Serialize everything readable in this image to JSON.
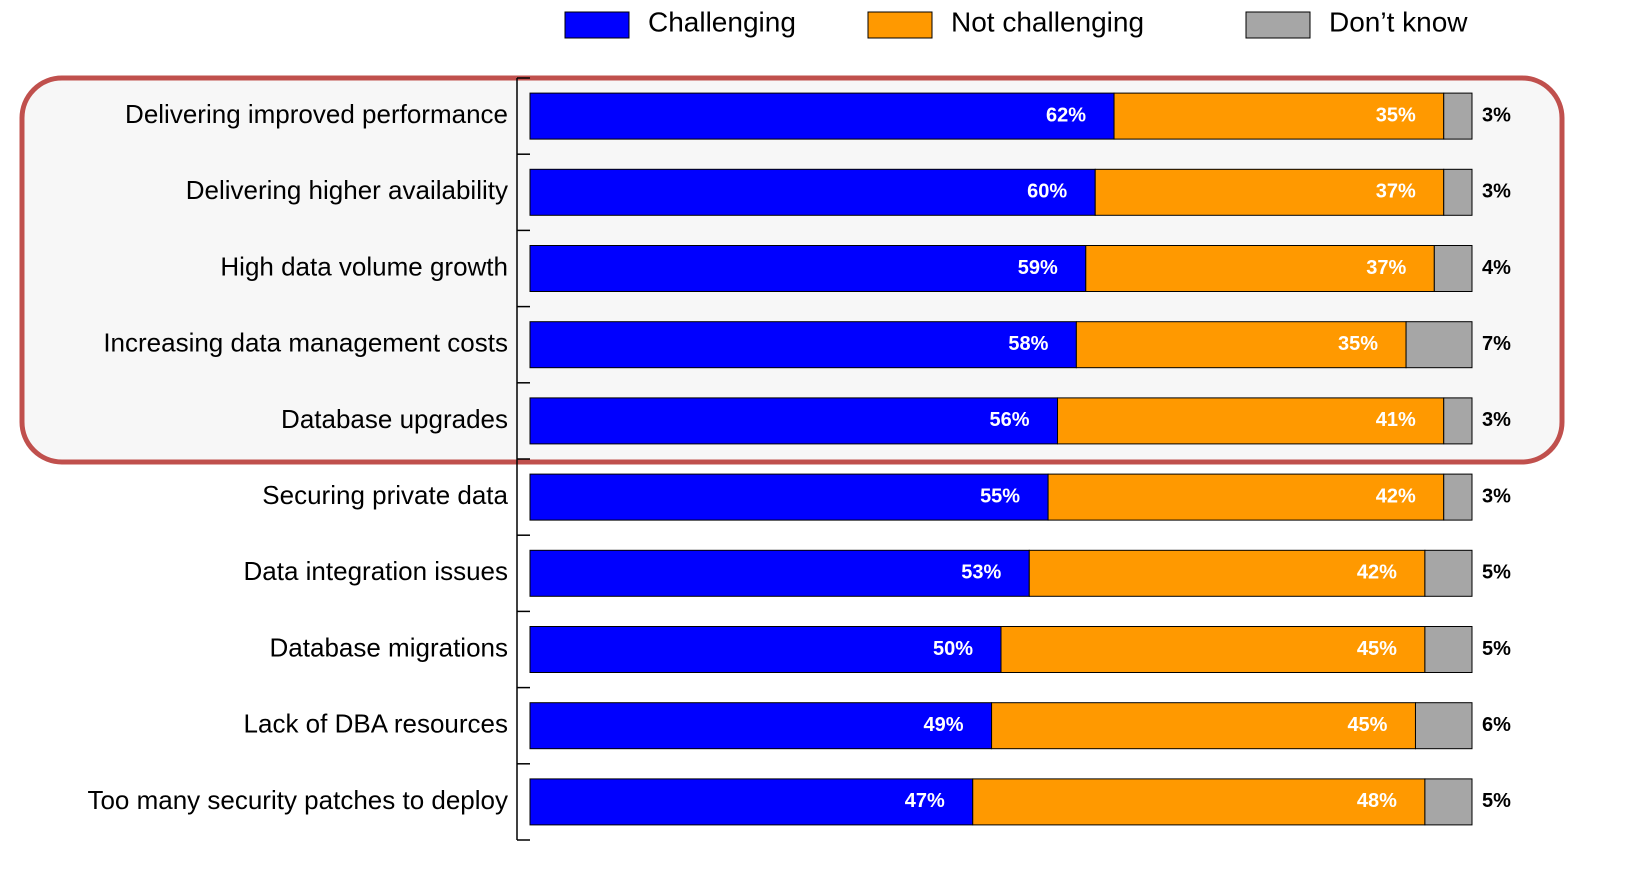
{
  "chart_data": {
    "type": "stacked_barh",
    "categories": [
      "Delivering improved performance",
      "Delivering higher availability",
      "High data volume growth",
      "Increasing data management costs",
      "Database upgrades",
      "Securing private data",
      "Data integration issues",
      "Database migrations",
      "Lack of DBA resources",
      "Too many security patches to deploy"
    ],
    "series": [
      {
        "name": "Challenging",
        "color": "#0000ff",
        "values": [
          62,
          60,
          59,
          58,
          56,
          55,
          53,
          50,
          49,
          47
        ],
        "value_labels": [
          "62%",
          "60%",
          "59%",
          "58%",
          "56%",
          "55%",
          "53%",
          "50%",
          "49%",
          "47%"
        ]
      },
      {
        "name": "Not challenging",
        "color": "#ff9900",
        "values": [
          35,
          37,
          37,
          35,
          41,
          42,
          42,
          45,
          45,
          48
        ],
        "value_labels": [
          "35%",
          "37%",
          "37%",
          "35%",
          "41%",
          "42%",
          "42%",
          "45%",
          "45%",
          "48%"
        ]
      },
      {
        "name": "Don’t know",
        "color": "#a6a6a6",
        "values": [
          3,
          3,
          4,
          7,
          3,
          3,
          5,
          5,
          6,
          5
        ],
        "value_labels": [
          "3%",
          "3%",
          "4%",
          "7%",
          "3%",
          "3%",
          "5%",
          "5%",
          "6%",
          "5%"
        ]
      }
    ],
    "xlim": [
      0,
      100
    ]
  }
}
